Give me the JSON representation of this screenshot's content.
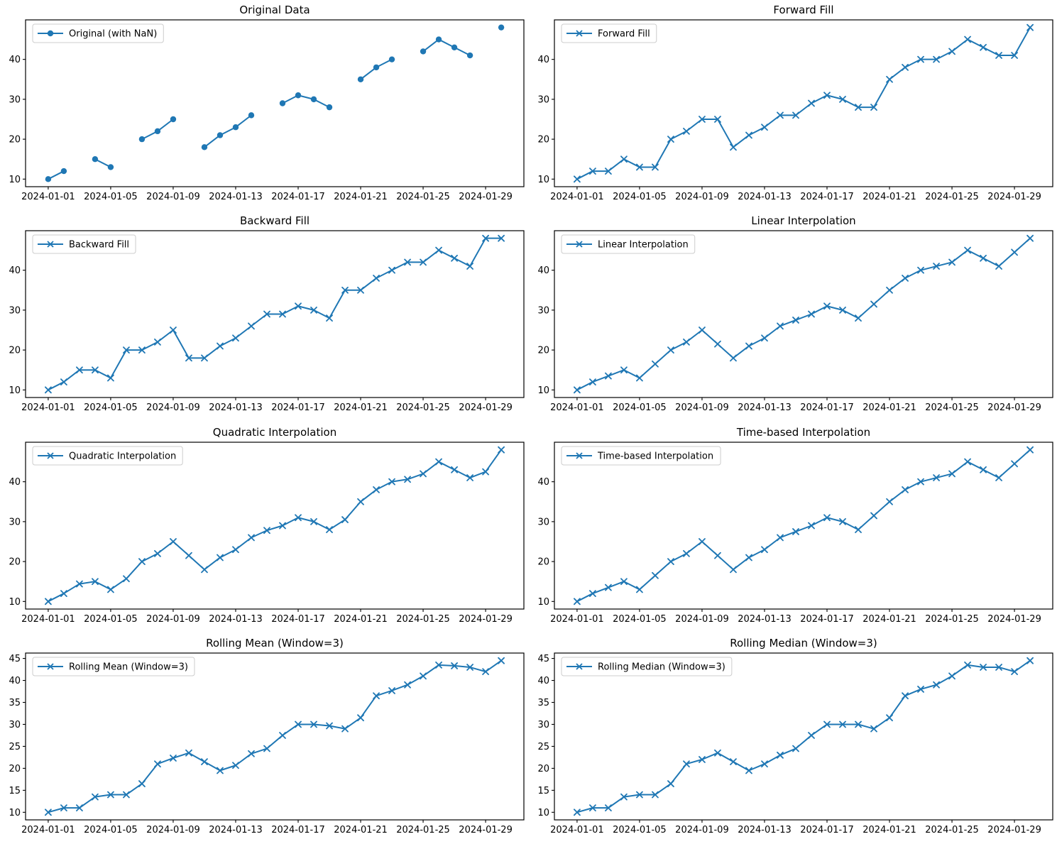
{
  "colors": {
    "line": "#1f77b4",
    "axis": "#000000",
    "text": "#000000",
    "legend_border": "#cccccc",
    "background": "#ffffff"
  },
  "x_axis": {
    "dates": [
      "2024-01-01",
      "2024-01-02",
      "2024-01-03",
      "2024-01-04",
      "2024-01-05",
      "2024-01-06",
      "2024-01-07",
      "2024-01-08",
      "2024-01-09",
      "2024-01-10",
      "2024-01-11",
      "2024-01-12",
      "2024-01-13",
      "2024-01-14",
      "2024-01-15",
      "2024-01-16",
      "2024-01-17",
      "2024-01-18",
      "2024-01-19",
      "2024-01-20",
      "2024-01-21",
      "2024-01-22",
      "2024-01-23",
      "2024-01-24",
      "2024-01-25",
      "2024-01-26",
      "2024-01-27",
      "2024-01-28",
      "2024-01-29",
      "2024-01-30"
    ],
    "tick_indices": [
      0,
      4,
      8,
      12,
      16,
      20,
      24,
      28
    ],
    "tick_labels": [
      "2024-01-01",
      "2024-01-05",
      "2024-01-09",
      "2024-01-13",
      "2024-01-17",
      "2024-01-21",
      "2024-01-25",
      "2024-01-29"
    ],
    "xlim": [
      -1.45,
      30.45
    ]
  },
  "chart_data": [
    {
      "id": "original-data",
      "type": "line",
      "title": "Original Data",
      "legend": "Original (with NaN)",
      "marker": "circle",
      "grid": false,
      "legend_position": "upper left",
      "ylim": [
        8.1,
        49.9
      ],
      "yticks": [
        10,
        20,
        30,
        40
      ],
      "values": [
        10,
        12,
        null,
        15,
        13,
        null,
        20,
        22,
        25,
        null,
        18,
        21,
        23,
        26,
        null,
        29,
        31,
        30,
        28,
        null,
        35,
        38,
        40,
        null,
        42,
        45,
        43,
        41,
        null,
        48
      ]
    },
    {
      "id": "forward-fill",
      "type": "line",
      "title": "Forward Fill",
      "legend": "Forward Fill",
      "marker": "x",
      "grid": false,
      "legend_position": "upper left",
      "ylim": [
        8.1,
        49.9
      ],
      "yticks": [
        10,
        20,
        30,
        40
      ],
      "values": [
        10,
        12,
        12,
        15,
        13,
        13,
        20,
        22,
        25,
        25,
        18,
        21,
        23,
        26,
        26,
        29,
        31,
        30,
        28,
        28,
        35,
        38,
        40,
        40,
        42,
        45,
        43,
        41,
        41,
        48
      ]
    },
    {
      "id": "backward-fill",
      "type": "line",
      "title": "Backward Fill",
      "legend": "Backward Fill",
      "marker": "x",
      "grid": false,
      "legend_position": "upper left",
      "ylim": [
        8.1,
        49.9
      ],
      "yticks": [
        10,
        20,
        30,
        40
      ],
      "values": [
        10,
        12,
        15,
        15,
        13,
        20,
        20,
        22,
        25,
        18,
        18,
        21,
        23,
        26,
        29,
        29,
        31,
        30,
        28,
        35,
        35,
        38,
        40,
        42,
        42,
        45,
        43,
        41,
        48,
        48
      ]
    },
    {
      "id": "linear-interpolation",
      "type": "line",
      "title": "Linear Interpolation",
      "legend": "Linear Interpolation",
      "marker": "x",
      "grid": false,
      "legend_position": "upper left",
      "ylim": [
        8.1,
        49.9
      ],
      "yticks": [
        10,
        20,
        30,
        40
      ],
      "values": [
        10,
        12,
        13.5,
        15,
        13,
        16.5,
        20,
        22,
        25,
        21.5,
        18,
        21,
        23,
        26,
        27.5,
        29,
        31,
        30,
        28,
        31.5,
        35,
        38,
        40,
        41,
        42,
        45,
        43,
        41,
        44.5,
        48
      ]
    },
    {
      "id": "quadratic-interpolation",
      "type": "line",
      "title": "Quadratic Interpolation",
      "legend": "Quadratic Interpolation",
      "marker": "x",
      "grid": false,
      "legend_position": "upper left",
      "ylim": [
        8.1,
        49.9
      ],
      "yticks": [
        10,
        20,
        30,
        40
      ],
      "values": [
        10,
        12,
        14.4,
        15,
        13,
        15.7,
        20,
        22,
        25,
        21.5,
        18,
        21,
        23,
        26,
        27.8,
        29,
        31,
        30,
        28,
        30.5,
        35,
        38,
        40,
        40.6,
        42,
        45,
        43,
        41,
        42.5,
        48
      ]
    },
    {
      "id": "time-based-interpolation",
      "type": "line",
      "title": "Time-based Interpolation",
      "legend": "Time-based Interpolation",
      "marker": "x",
      "grid": false,
      "legend_position": "upper left",
      "ylim": [
        8.1,
        49.9
      ],
      "yticks": [
        10,
        20,
        30,
        40
      ],
      "values": [
        10,
        12,
        13.5,
        15,
        13,
        16.5,
        20,
        22,
        25,
        21.5,
        18,
        21,
        23,
        26,
        27.5,
        29,
        31,
        30,
        28,
        31.5,
        35,
        38,
        40,
        41,
        42,
        45,
        43,
        41,
        44.5,
        48
      ]
    },
    {
      "id": "rolling-mean",
      "type": "line",
      "title": "Rolling Mean (Window=3)",
      "legend": "Rolling Mean (Window=3)",
      "marker": "x",
      "grid": false,
      "legend_position": "upper left",
      "ylim": [
        8.275,
        46.225
      ],
      "yticks": [
        10,
        15,
        20,
        25,
        30,
        35,
        40,
        45
      ],
      "values": [
        10,
        11,
        11,
        13.5,
        14,
        14,
        16.5,
        21,
        22.33,
        23.5,
        21.5,
        19.5,
        20.67,
        23.33,
        24.5,
        27.5,
        30,
        30,
        29.67,
        29,
        31.5,
        36.5,
        37.67,
        39,
        41,
        43.5,
        43.33,
        43,
        42,
        44.5
      ]
    },
    {
      "id": "rolling-median",
      "type": "line",
      "title": "Rolling Median (Window=3)",
      "legend": "Rolling Median (Window=3)",
      "marker": "x",
      "grid": false,
      "legend_position": "upper left",
      "ylim": [
        8.275,
        46.225
      ],
      "yticks": [
        10,
        15,
        20,
        25,
        30,
        35,
        40,
        45
      ],
      "values": [
        10,
        11,
        11,
        13.5,
        14,
        14,
        16.5,
        21,
        22,
        23.5,
        21.5,
        19.5,
        21,
        23,
        24.5,
        27.5,
        30,
        30,
        30,
        29,
        31.5,
        36.5,
        38,
        39,
        41,
        43.5,
        43,
        43,
        42,
        44.5
      ]
    }
  ]
}
